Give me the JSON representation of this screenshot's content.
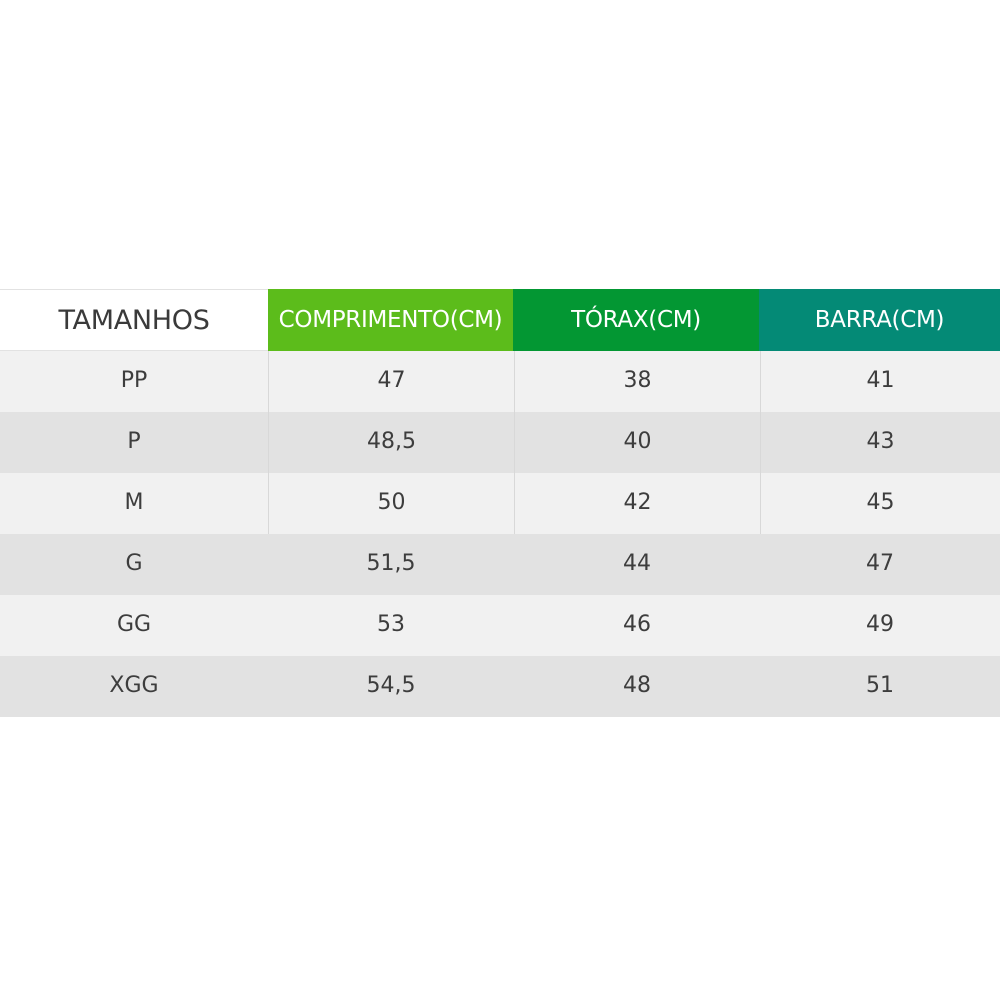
{
  "table": {
    "headers": [
      {
        "label": "TAMANHOS",
        "color": "#ffffff"
      },
      {
        "label": "COMPRIMENTO(CM)",
        "color": "#5cbc1b"
      },
      {
        "label": "TÓRAX(CM)",
        "color": "#039733"
      },
      {
        "label": "BARRA(CM)",
        "color": "#048a76"
      }
    ],
    "rows": [
      {
        "size": "PP",
        "comprimento": "47",
        "torax": "38",
        "barra": "41"
      },
      {
        "size": "P",
        "comprimento": "48,5",
        "torax": "40",
        "barra": "43"
      },
      {
        "size": "M",
        "comprimento": "50",
        "torax": "42",
        "barra": "45"
      },
      {
        "size": "G",
        "comprimento": "51,5",
        "torax": "44",
        "barra": "47"
      },
      {
        "size": "GG",
        "comprimento": "53",
        "torax": "46",
        "barra": "49"
      },
      {
        "size": "XGG",
        "comprimento": "54,5",
        "torax": "48",
        "barra": "51"
      }
    ]
  }
}
